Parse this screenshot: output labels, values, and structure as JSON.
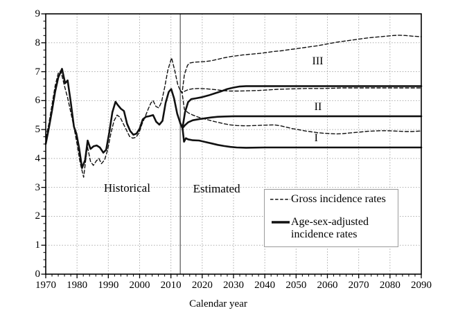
{
  "figure": {
    "background": "#ffffff",
    "ink_color": "#111111",
    "grid_color": "#aaaaaa",
    "divider_color": "#7d7d7d",
    "legend_border_color": "#9a9a9a"
  },
  "chart_data": {
    "type": "line",
    "title": "",
    "xlabel": "Calendar year",
    "ylabel": "",
    "xlim": [
      1970,
      2090
    ],
    "ylim": [
      0,
      9
    ],
    "x_ticks": [
      1970,
      1980,
      1990,
      2000,
      2010,
      2020,
      2030,
      2040,
      2050,
      2060,
      2070,
      2080,
      2090
    ],
    "y_ticks": [
      0,
      1,
      2,
      3,
      4,
      5,
      6,
      7,
      8,
      9
    ],
    "x_minor_step": 2,
    "y_minor_step": 0.25,
    "grid": "dotted",
    "divider_x": 2013,
    "legend": {
      "position": "bottom-right",
      "entries": [
        {
          "label": "Gross incidence rates",
          "style": "dashed"
        },
        {
          "label": "Age-sex-adjusted incidence rates",
          "style": "solid"
        }
      ]
    },
    "annotations": [
      {
        "text": "Historical",
        "x": 1996.0,
        "y": 2.97,
        "kind": "region"
      },
      {
        "text": "Estimated",
        "x": 2024.6,
        "y": 2.95,
        "kind": "region"
      },
      {
        "text": "III",
        "x": 2056.9,
        "y": 7.36,
        "kind": "scenario"
      },
      {
        "text": "II",
        "x": 2057.0,
        "y": 5.77,
        "kind": "scenario"
      },
      {
        "text": "I",
        "x": 2056.4,
        "y": 4.7,
        "kind": "scenario"
      }
    ],
    "series": [
      {
        "name": "Gross incidence rates (historical)",
        "line_style": "dashed",
        "points": [
          [
            1970,
            4.72
          ],
          [
            1971,
            5.2
          ],
          [
            1972,
            5.85
          ],
          [
            1973,
            6.5
          ],
          [
            1974,
            6.95
          ],
          [
            1974.8,
            7.03
          ],
          [
            1976,
            6.5
          ],
          [
            1977,
            6.1
          ],
          [
            1978,
            5.6
          ],
          [
            1979,
            5.08
          ],
          [
            1980,
            4.5
          ],
          [
            1981,
            3.85
          ],
          [
            1982.1,
            3.35
          ],
          [
            1983.3,
            4.42
          ],
          [
            1984.3,
            3.9
          ],
          [
            1985.2,
            3.76
          ],
          [
            1986.2,
            3.92
          ],
          [
            1987,
            4.0
          ],
          [
            1987.8,
            3.82
          ],
          [
            1988.8,
            3.95
          ],
          [
            1989.8,
            4.3
          ],
          [
            1990.8,
            4.85
          ],
          [
            1991.8,
            5.3
          ],
          [
            1992.8,
            5.5
          ],
          [
            1993.8,
            5.42
          ],
          [
            1994.8,
            5.2
          ],
          [
            1995.8,
            4.98
          ],
          [
            1996.8,
            4.76
          ],
          [
            1997.8,
            4.7
          ],
          [
            1998.8,
            4.73
          ],
          [
            1999.8,
            4.88
          ],
          [
            2000.8,
            5.2
          ],
          [
            2001.8,
            5.45
          ],
          [
            2002.8,
            5.72
          ],
          [
            2003.6,
            5.92
          ],
          [
            2004.3,
            6.0
          ],
          [
            2005.2,
            5.8
          ],
          [
            2006.1,
            5.75
          ],
          [
            2007,
            5.95
          ],
          [
            2008,
            6.45
          ],
          [
            2009,
            7.05
          ],
          [
            2010.2,
            7.48
          ],
          [
            2011.2,
            7.05
          ],
          [
            2012.2,
            6.55
          ],
          [
            2013,
            6.35
          ]
        ]
      },
      {
        "name": "Age-sex-adjusted incidence rates (historical)",
        "line_style": "solid",
        "points": [
          [
            1970,
            4.5
          ],
          [
            1971,
            5.05
          ],
          [
            1972,
            5.65
          ],
          [
            1973,
            6.3
          ],
          [
            1974,
            6.8
          ],
          [
            1975.2,
            7.1
          ],
          [
            1976.2,
            6.6
          ],
          [
            1977,
            6.7
          ],
          [
            1978,
            5.95
          ],
          [
            1979,
            5.1
          ],
          [
            1979.8,
            4.85
          ],
          [
            1980.6,
            4.4
          ],
          [
            1981.6,
            3.67
          ],
          [
            1982.6,
            3.95
          ],
          [
            1983.4,
            4.62
          ],
          [
            1984.3,
            4.33
          ],
          [
            1985.3,
            4.42
          ],
          [
            1986.3,
            4.45
          ],
          [
            1987.3,
            4.38
          ],
          [
            1988.4,
            4.2
          ],
          [
            1989.3,
            4.3
          ],
          [
            1990.3,
            4.9
          ],
          [
            1991.3,
            5.6
          ],
          [
            1992.3,
            5.96
          ],
          [
            1993,
            5.85
          ],
          [
            1994,
            5.72
          ],
          [
            1995,
            5.64
          ],
          [
            1996,
            5.2
          ],
          [
            1997,
            4.95
          ],
          [
            1998,
            4.82
          ],
          [
            1999,
            4.86
          ],
          [
            2000,
            5.03
          ],
          [
            2001,
            5.35
          ],
          [
            2002,
            5.44
          ],
          [
            2003,
            5.46
          ],
          [
            2004.3,
            5.5
          ],
          [
            2005.3,
            5.27
          ],
          [
            2006.3,
            5.17
          ],
          [
            2007.3,
            5.3
          ],
          [
            2008.3,
            5.92
          ],
          [
            2009.3,
            6.3
          ],
          [
            2010.1,
            6.4
          ],
          [
            2011,
            6.08
          ],
          [
            2012,
            5.55
          ],
          [
            2013,
            5.22
          ]
        ]
      },
      {
        "name": "Gross incidence rates, scenario III",
        "line_style": "dashed",
        "points": [
          [
            2013,
            6.35
          ],
          [
            2013.6,
            6.28
          ],
          [
            2014.3,
            6.9
          ],
          [
            2015.3,
            7.22
          ],
          [
            2016,
            7.3
          ],
          [
            2017.5,
            7.33
          ],
          [
            2019,
            7.34
          ],
          [
            2021,
            7.35
          ],
          [
            2023,
            7.38
          ],
          [
            2025,
            7.43
          ],
          [
            2027,
            7.48
          ],
          [
            2029,
            7.52
          ],
          [
            2031,
            7.55
          ],
          [
            2033,
            7.58
          ],
          [
            2035,
            7.6
          ],
          [
            2037,
            7.62
          ],
          [
            2039,
            7.64
          ],
          [
            2041,
            7.67
          ],
          [
            2043,
            7.7
          ],
          [
            2045,
            7.72
          ],
          [
            2047,
            7.75
          ],
          [
            2049,
            7.78
          ],
          [
            2051,
            7.81
          ],
          [
            2053,
            7.84
          ],
          [
            2055,
            7.87
          ],
          [
            2057,
            7.9
          ],
          [
            2059,
            7.94
          ],
          [
            2061,
            7.98
          ],
          [
            2063,
            8.02
          ],
          [
            2065,
            8.05
          ],
          [
            2067,
            8.08
          ],
          [
            2069,
            8.11
          ],
          [
            2071,
            8.14
          ],
          [
            2073,
            8.17
          ],
          [
            2075,
            8.19
          ],
          [
            2077,
            8.21
          ],
          [
            2079,
            8.23
          ],
          [
            2081,
            8.25
          ],
          [
            2083,
            8.26
          ],
          [
            2085,
            8.25
          ],
          [
            2087,
            8.23
          ],
          [
            2090,
            8.21
          ]
        ]
      },
      {
        "name": "Gross incidence rates, scenario II",
        "line_style": "dashed",
        "points": [
          [
            2013,
            6.35
          ],
          [
            2013.6,
            6.27
          ],
          [
            2014.5,
            6.33
          ],
          [
            2015.5,
            6.38
          ],
          [
            2017,
            6.41
          ],
          [
            2019,
            6.42
          ],
          [
            2021,
            6.41
          ],
          [
            2023,
            6.39
          ],
          [
            2025,
            6.37
          ],
          [
            2027,
            6.34
          ],
          [
            2029,
            6.33
          ],
          [
            2032,
            6.33
          ],
          [
            2035,
            6.34
          ],
          [
            2038,
            6.35
          ],
          [
            2041,
            6.37
          ],
          [
            2044,
            6.39
          ],
          [
            2047,
            6.4
          ],
          [
            2050,
            6.41
          ],
          [
            2053,
            6.42
          ],
          [
            2056,
            6.42
          ],
          [
            2059,
            6.42
          ],
          [
            2062,
            6.43
          ],
          [
            2065,
            6.44
          ],
          [
            2070,
            6.44
          ],
          [
            2075,
            6.44
          ],
          [
            2080,
            6.44
          ],
          [
            2085,
            6.44
          ],
          [
            2090,
            6.44
          ]
        ]
      },
      {
        "name": "Gross incidence rates, scenario I",
        "line_style": "dashed",
        "points": [
          [
            2013,
            6.35
          ],
          [
            2013.6,
            6.25
          ],
          [
            2014.3,
            5.7
          ],
          [
            2015.5,
            5.58
          ],
          [
            2017,
            5.5
          ],
          [
            2019,
            5.42
          ],
          [
            2021,
            5.36
          ],
          [
            2023,
            5.3
          ],
          [
            2025,
            5.25
          ],
          [
            2027,
            5.2
          ],
          [
            2029,
            5.16
          ],
          [
            2031,
            5.14
          ],
          [
            2034,
            5.13
          ],
          [
            2037,
            5.14
          ],
          [
            2040,
            5.15
          ],
          [
            2043,
            5.16
          ],
          [
            2045,
            5.13
          ],
          [
            2047,
            5.08
          ],
          [
            2049,
            5.03
          ],
          [
            2051,
            4.99
          ],
          [
            2053,
            4.95
          ],
          [
            2055,
            4.92
          ],
          [
            2057,
            4.89
          ],
          [
            2059,
            4.87
          ],
          [
            2061,
            4.86
          ],
          [
            2063,
            4.85
          ],
          [
            2065,
            4.86
          ],
          [
            2067,
            4.88
          ],
          [
            2069,
            4.9
          ],
          [
            2071,
            4.92
          ],
          [
            2073,
            4.94
          ],
          [
            2075,
            4.95
          ],
          [
            2077,
            4.96
          ],
          [
            2079,
            4.96
          ],
          [
            2081,
            4.95
          ],
          [
            2083,
            4.94
          ],
          [
            2085,
            4.93
          ],
          [
            2087,
            4.93
          ],
          [
            2090,
            4.95
          ]
        ]
      },
      {
        "name": "Age-sex-adjusted incidence rates, scenario III",
        "line_style": "solid",
        "points": [
          [
            2013,
            5.22
          ],
          [
            2013.7,
            5.05
          ],
          [
            2014.5,
            5.6
          ],
          [
            2015.5,
            5.95
          ],
          [
            2016.5,
            6.05
          ],
          [
            2018,
            6.08
          ],
          [
            2020,
            6.12
          ],
          [
            2022,
            6.18
          ],
          [
            2024,
            6.25
          ],
          [
            2026,
            6.32
          ],
          [
            2028,
            6.4
          ],
          [
            2030,
            6.45
          ],
          [
            2032,
            6.49
          ],
          [
            2034,
            6.5
          ],
          [
            2040,
            6.5
          ],
          [
            2050,
            6.5
          ],
          [
            2060,
            6.5
          ],
          [
            2070,
            6.5
          ],
          [
            2080,
            6.5
          ],
          [
            2090,
            6.5
          ]
        ]
      },
      {
        "name": "Age-sex-adjusted incidence rates, scenario II",
        "line_style": "solid",
        "points": [
          [
            2013,
            5.22
          ],
          [
            2013.7,
            5.05
          ],
          [
            2014.5,
            5.15
          ],
          [
            2015.5,
            5.25
          ],
          [
            2017,
            5.32
          ],
          [
            2019,
            5.36
          ],
          [
            2021,
            5.39
          ],
          [
            2023,
            5.42
          ],
          [
            2025,
            5.44
          ],
          [
            2027,
            5.45
          ],
          [
            2030,
            5.46
          ],
          [
            2040,
            5.46
          ],
          [
            2050,
            5.46
          ],
          [
            2060,
            5.46
          ],
          [
            2070,
            5.46
          ],
          [
            2080,
            5.46
          ],
          [
            2090,
            5.46
          ]
        ]
      },
      {
        "name": "Age-sex-adjusted incidence rates, scenario I",
        "line_style": "solid",
        "points": [
          [
            2013,
            5.22
          ],
          [
            2013.7,
            5.05
          ],
          [
            2014.2,
            4.58
          ],
          [
            2014.8,
            4.7
          ],
          [
            2015.5,
            4.66
          ],
          [
            2017,
            4.63
          ],
          [
            2019,
            4.62
          ],
          [
            2021,
            4.57
          ],
          [
            2023,
            4.52
          ],
          [
            2025,
            4.47
          ],
          [
            2027,
            4.43
          ],
          [
            2029,
            4.4
          ],
          [
            2031,
            4.38
          ],
          [
            2034,
            4.37
          ],
          [
            2040,
            4.38
          ],
          [
            2050,
            4.38
          ],
          [
            2060,
            4.38
          ],
          [
            2070,
            4.38
          ],
          [
            2080,
            4.38
          ],
          [
            2090,
            4.38
          ]
        ]
      }
    ]
  }
}
